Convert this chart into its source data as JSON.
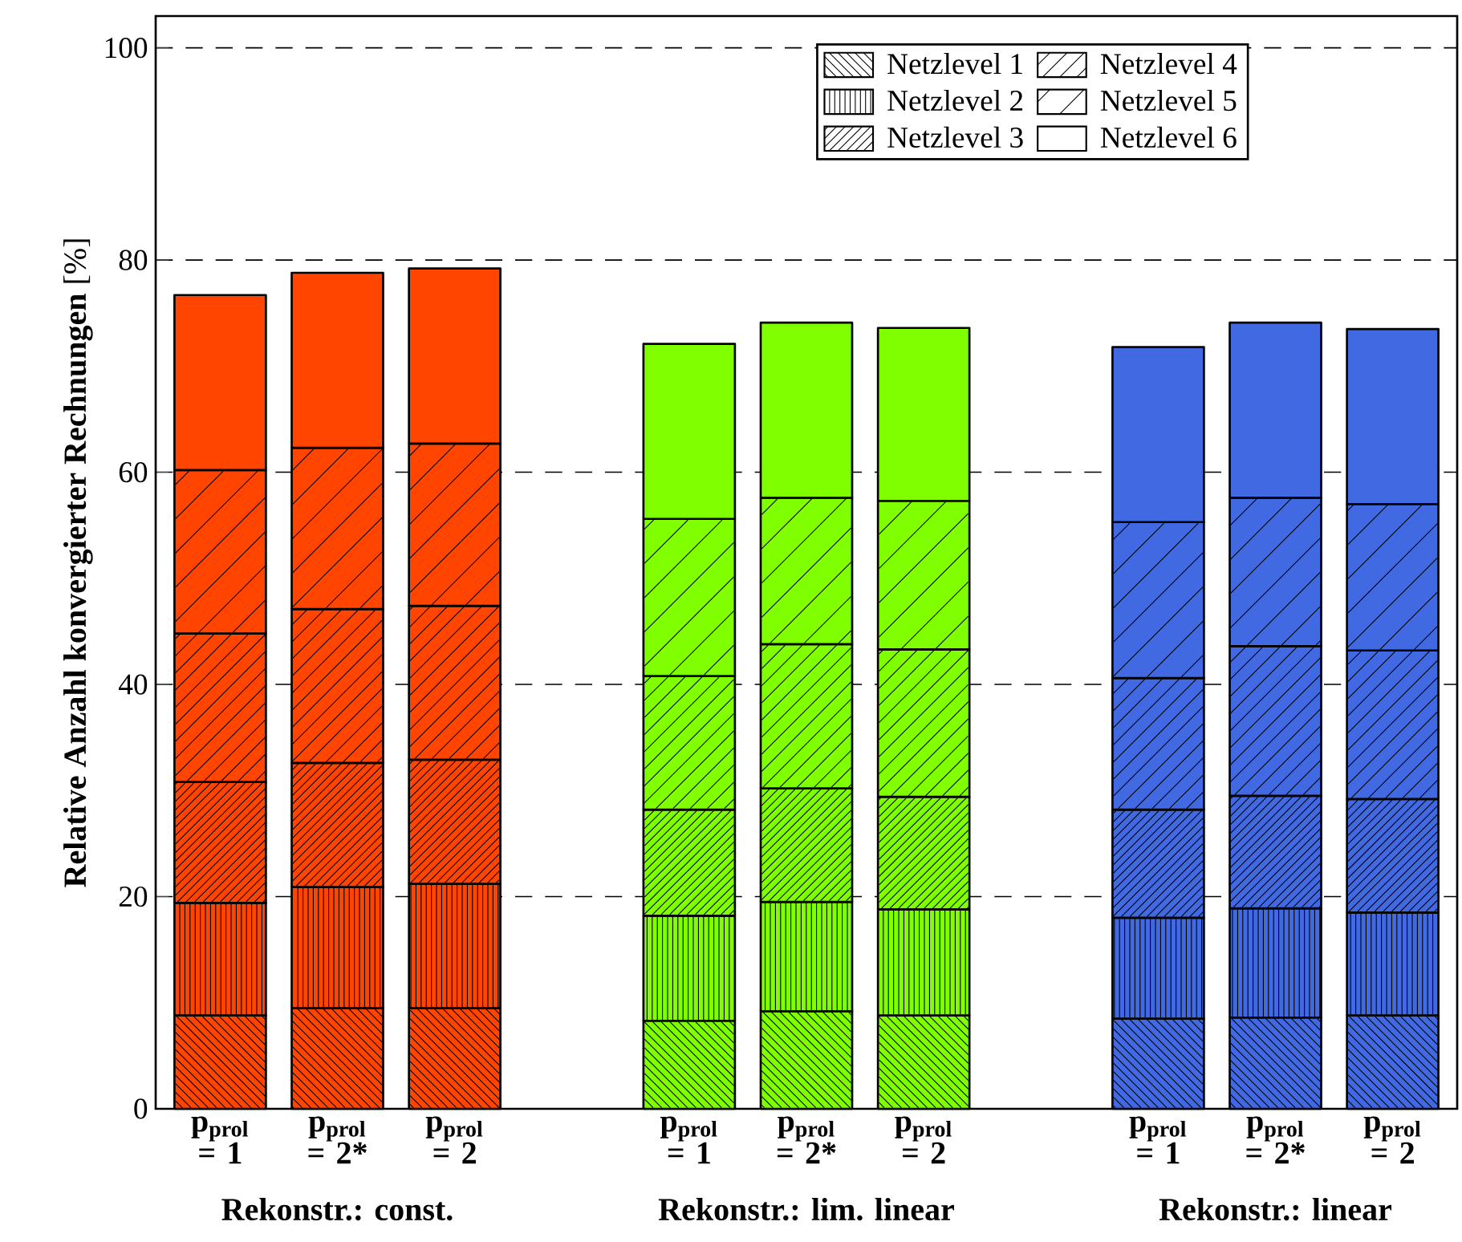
{
  "chart_data": {
    "type": "bar",
    "stacked": true,
    "ylabel": "**Relative Anzahl konvergierter Rechnungen** [%]",
    "categories": [
      "p$_{prol}$ = 1",
      "p$_{prol}$ = 2*",
      "p$_{prol}$ = 2",
      null,
      "p$_{prol}$ = 1",
      "p$_{prol}$ = 2*",
      "p$_{prol}$ = 2",
      null,
      "p$_{prol}$ = 1",
      "p$_{prol}$ = 2*",
      "p$_{prol}$ = 2"
    ],
    "annotations": [
      "Rekonstr.: const.",
      "Rekonstr.: lim. linear",
      "Rekonstr.: linear"
    ],
    "series": [
      {
        "name": "Netzlevel 1",
        "colors": [
          "#ff4500",
          "#ff4500",
          "#ff4500",
          null,
          "#7fff00",
          "#7fff00",
          "#7fff00",
          null,
          "#4169e1",
          "#4169e1",
          "#4169e1"
        ],
        "values": [
          8.8,
          9.5,
          9.5,
          null,
          8.3,
          9.2,
          8.8,
          null,
          8.5,
          8.6,
          8.8
        ]
      },
      {
        "name": "Netzlevel 2",
        "colors": [
          "#ff4500",
          "#ff4500",
          "#ff4500",
          null,
          "#7fff00",
          "#7fff00",
          "#7fff00",
          null,
          "#4169e1",
          "#4169e1",
          "#4169e1"
        ],
        "values": [
          10.6,
          11.4,
          11.7,
          null,
          9.9,
          10.3,
          10.0,
          null,
          9.5,
          10.3,
          9.7
        ]
      },
      {
        "name": "Netzlevel 3",
        "colors": [
          "#ff4500",
          "#ff4500",
          "#ff4500",
          null,
          "#7fff00",
          "#7fff00",
          "#7fff00",
          null,
          "#4169e1",
          "#4169e1",
          "#4169e1"
        ],
        "values": [
          11.4,
          11.7,
          11.7,
          null,
          10.0,
          10.7,
          10.6,
          null,
          10.2,
          10.6,
          10.7
        ]
      },
      {
        "name": "Netzlevel 4",
        "colors": [
          "#ff4500",
          "#ff4500",
          "#ff4500",
          null,
          "#7fff00",
          "#7fff00",
          "#7fff00",
          null,
          "#4169e1",
          "#4169e1",
          "#4169e1"
        ],
        "values": [
          14.0,
          14.5,
          14.5,
          null,
          12.6,
          13.6,
          13.9,
          null,
          12.4,
          14.1,
          14.0
        ]
      },
      {
        "name": "Netzlevel 5",
        "colors": [
          "#ff4500",
          "#ff4500",
          "#ff4500",
          null,
          "#7fff00",
          "#7fff00",
          "#7fff00",
          null,
          "#4169e1",
          "#4169e1",
          "#4169e1"
        ],
        "values": [
          15.4,
          15.2,
          15.3,
          null,
          14.8,
          13.8,
          14.0,
          null,
          14.7,
          14.0,
          13.8
        ]
      },
      {
        "name": "Netzlevel 6",
        "colors": [
          "#ff4500",
          "#ff4500",
          "#ff4500",
          null,
          "#7fff00",
          "#7fff00",
          "#7fff00",
          null,
          "#4169e1",
          "#4169e1",
          "#4169e1"
        ],
        "values": [
          16.5,
          16.5,
          16.5,
          null,
          16.5,
          16.5,
          16.3,
          null,
          16.5,
          16.5,
          16.5
        ]
      }
    ],
    "ylim": [
      0,
      103
    ],
    "yticks": [
      0,
      20,
      40,
      60,
      80,
      100
    ],
    "grid": "y",
    "legend": "top right"
  }
}
